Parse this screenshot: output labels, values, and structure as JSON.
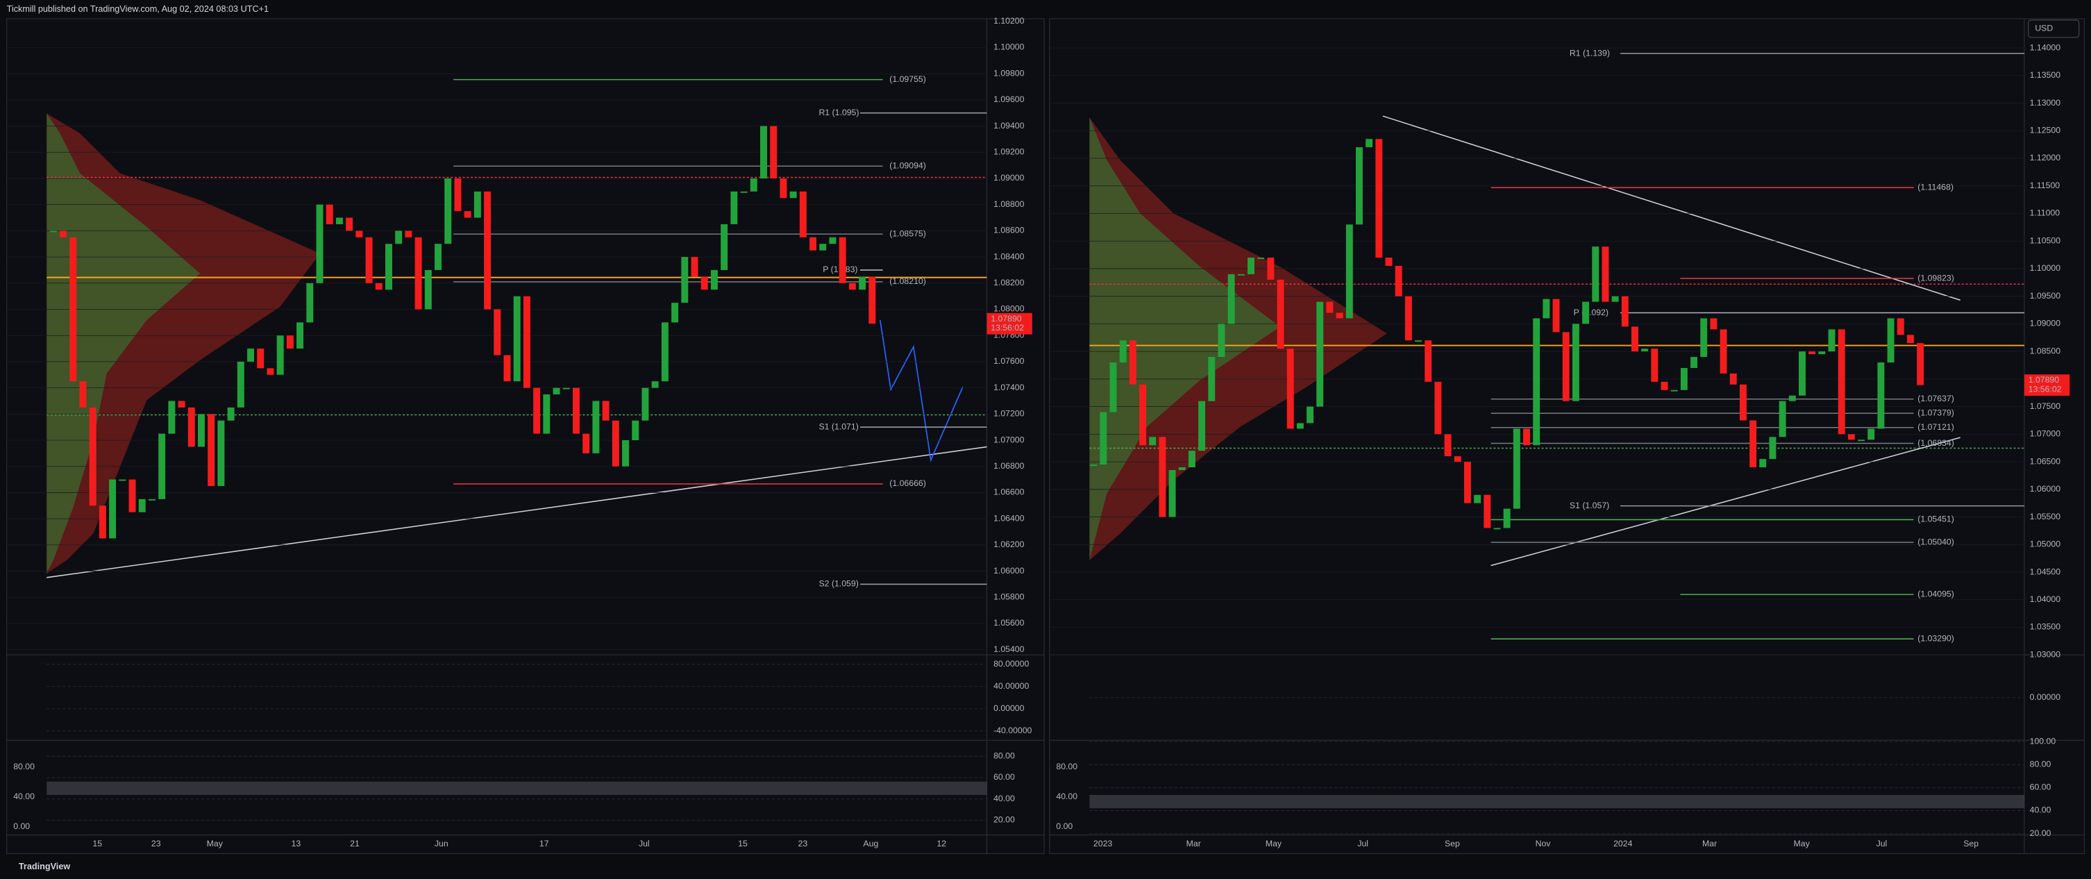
{
  "header": {
    "title": "Tickmill published on TradingView.com, Aug 02, 2024 08:03 UTC+1"
  },
  "footer": {
    "brand": "TradingView"
  },
  "currency": "USD",
  "up_color": "#23a33b",
  "down_color": "#f41d1d",
  "panels": [
    {
      "ylim": [
        1.0536,
        1.1022
      ],
      "yticks": [
        {
          "value": 1.102,
          "label": "1.10200"
        },
        {
          "value": 1.1,
          "label": "1.10000"
        },
        {
          "value": 1.098,
          "label": "1.09800"
        },
        {
          "value": 1.096,
          "label": "1.09600"
        },
        {
          "value": 1.094,
          "label": "1.09400"
        },
        {
          "value": 1.092,
          "label": "1.09200"
        },
        {
          "value": 1.09,
          "label": "1.09000"
        },
        {
          "value": 1.088,
          "label": "1.08800"
        },
        {
          "value": 1.086,
          "label": "1.08600"
        },
        {
          "value": 1.084,
          "label": "1.08400"
        },
        {
          "value": 1.082,
          "label": "1.08200"
        },
        {
          "value": 1.08,
          "label": "1.08000"
        },
        {
          "value": 1.078,
          "label": "1.07800"
        },
        {
          "value": 1.076,
          "label": "1.07600"
        },
        {
          "value": 1.074,
          "label": "1.07400"
        },
        {
          "value": 1.072,
          "label": "1.07200"
        },
        {
          "value": 1.07,
          "label": "1.07000"
        },
        {
          "value": 1.068,
          "label": "1.06800"
        },
        {
          "value": 1.066,
          "label": "1.06600"
        },
        {
          "value": 1.064,
          "label": "1.06400"
        },
        {
          "value": 1.062,
          "label": "1.06200"
        },
        {
          "value": 1.06,
          "label": "1.06000"
        },
        {
          "value": 1.058,
          "label": "1.05800"
        },
        {
          "value": 1.056,
          "label": "1.05600"
        },
        {
          "value": 1.054,
          "label": "1.05400"
        }
      ],
      "closes": [
        1.086,
        1.0855,
        1.0745,
        1.0725,
        1.065,
        1.0625,
        1.067,
        1.067,
        1.0645,
        1.0655,
        1.0655,
        1.0705,
        1.073,
        1.0725,
        1.0695,
        1.072,
        1.0665,
        1.0715,
        1.0725,
        1.076,
        1.077,
        1.0755,
        1.075,
        1.078,
        1.077,
        1.079,
        1.082,
        1.088,
        1.0865,
        1.087,
        1.086,
        1.0855,
        1.082,
        1.0815,
        1.085,
        1.086,
        1.0855,
        1.08,
        1.083,
        1.085,
        1.09,
        1.0875,
        1.087,
        1.089,
        1.08,
        1.0765,
        1.0745,
        1.081,
        1.074,
        1.0705,
        1.0735,
        1.074,
        1.074,
        1.0705,
        1.069,
        1.073,
        1.0715,
        1.068,
        1.07,
        1.0715,
        1.074,
        1.0745,
        1.079,
        1.0805,
        1.084,
        1.0825,
        1.0815,
        1.083,
        1.0865,
        1.089,
        1.089,
        1.09,
        1.094,
        1.09,
        1.0885,
        1.089,
        1.0855,
        1.0845,
        1.085,
        1.0855,
        1.082,
        1.0815,
        1.0825,
        1.0789
      ],
      "levels": [
        {
          "label": "(1.09755)",
          "price": 1.09755,
          "color": "#4caf50"
        },
        {
          "label": "R1 (1.095)",
          "price": 1.095,
          "color": "#9598a1"
        },
        {
          "label": "(1.09094)",
          "price": 1.09094,
          "color": "#787b86"
        },
        {
          "label": "(1.08575)",
          "price": 1.08575,
          "color": "#787b86"
        },
        {
          "label": "(1.08210)",
          "price": 1.0821,
          "color": "#787b86"
        },
        {
          "label": "P (1.083)",
          "price": 1.083,
          "color": "#b2b5be"
        },
        {
          "label": "S1 (1.071)",
          "price": 1.071,
          "color": "#9598a1"
        },
        {
          "label": "(1.06666)",
          "price": 1.06666,
          "color": "#f23645"
        },
        {
          "label": "S2 (1.059)",
          "price": 1.059,
          "color": "#9598a1"
        }
      ],
      "price_tag": {
        "value": {
          "value": 1.0789,
          "label": "1.07890"
        },
        "countdown": "13:56:02"
      },
      "dates": [
        "15",
        "23",
        "May",
        "13",
        "21",
        "Jun",
        "17",
        "Jul",
        "15",
        "23",
        "Aug",
        "12"
      ],
      "osc1": {
        "ylim": [
          -56.8,
          96.8
        ],
        "yticks": [
          {
            "value": 80,
            "label": "80.00000"
          },
          {
            "value": 40,
            "label": "40.00000"
          },
          {
            "value": 0,
            "label": "0.00000"
          },
          {
            "value": -40,
            "label": "-40.00000"
          }
        ]
      },
      "osc2": {
        "ylim": [
          -10.7,
          115.6
        ],
        "yticks": [
          {
            "value": 80,
            "label": "80.00"
          },
          {
            "value": 40,
            "label": "40.00"
          },
          {
            "value": 0,
            "label": "0.00"
          }
        ],
        "y2lim": [
          6.25,
          95
        ],
        "y2ticks": [
          {
            "value": 80,
            "label": "80.00"
          },
          {
            "value": 60,
            "label": "60.00"
          },
          {
            "value": 40,
            "label": "40.00"
          },
          {
            "value": 20,
            "label": "20.00"
          }
        ]
      }
    },
    {
      "ylim": [
        1.03,
        1.1453
      ],
      "yticks": [
        {
          "value": 1.14,
          "label": "1.14000"
        },
        {
          "value": 1.135,
          "label": "1.13500"
        },
        {
          "value": 1.13,
          "label": "1.13000"
        },
        {
          "value": 1.125,
          "label": "1.12500"
        },
        {
          "value": 1.12,
          "label": "1.12000"
        },
        {
          "value": 1.115,
          "label": "1.11500"
        },
        {
          "value": 1.11,
          "label": "1.11000"
        },
        {
          "value": 1.105,
          "label": "1.10500"
        },
        {
          "value": 1.1,
          "label": "1.10000"
        },
        {
          "value": 1.095,
          "label": "1.09500"
        },
        {
          "value": 1.09,
          "label": "1.09000"
        },
        {
          "value": 1.085,
          "label": "1.08500"
        },
        {
          "value": 1.08,
          "label": "1.08000"
        },
        {
          "value": 1.075,
          "label": "1.07500"
        },
        {
          "value": 1.07,
          "label": "1.07000"
        },
        {
          "value": 1.065,
          "label": "1.06500"
        },
        {
          "value": 1.06,
          "label": "1.06000"
        },
        {
          "value": 1.055,
          "label": "1.05500"
        },
        {
          "value": 1.05,
          "label": "1.05000"
        },
        {
          "value": 1.045,
          "label": "1.04500"
        },
        {
          "value": 1.04,
          "label": "1.04000"
        },
        {
          "value": 1.035,
          "label": "1.03500"
        },
        {
          "value": 1.03,
          "label": "1.03000"
        }
      ],
      "closes": [
        1.0645,
        1.074,
        1.083,
        1.087,
        1.079,
        1.068,
        1.0695,
        1.055,
        1.0635,
        1.064,
        1.067,
        1.076,
        1.084,
        1.09,
        1.099,
        1.099,
        1.102,
        1.102,
        1.098,
        1.0855,
        1.071,
        1.072,
        1.075,
        1.094,
        1.092,
        1.091,
        1.108,
        1.122,
        1.1235,
        1.102,
        1.1005,
        1.095,
        1.087,
        1.087,
        1.0795,
        1.07,
        1.066,
        1.065,
        1.0575,
        1.059,
        1.053,
        1.053,
        1.0565,
        1.071,
        1.068,
        1.091,
        1.0945,
        1.0885,
        1.076,
        1.09,
        1.094,
        1.104,
        1.094,
        1.095,
        1.0895,
        1.085,
        1.0855,
        1.0795,
        1.078,
        1.078,
        1.082,
        1.084,
        1.091,
        1.089,
        1.081,
        1.079,
        1.0725,
        1.064,
        1.0655,
        1.0695,
        1.076,
        1.077,
        1.085,
        1.0845,
        1.085,
        1.089,
        1.07,
        1.069,
        1.069,
        1.071,
        1.083,
        1.091,
        1.088,
        1.0865,
        1.0789
      ],
      "levels": [
        {
          "label": "R1 (1.139)",
          "price": 1.139,
          "color": "#9598a1"
        },
        {
          "label": "(1.11468)",
          "price": 1.11468,
          "color": "#f23645"
        },
        {
          "label": "(1.09823)",
          "price": 1.09823,
          "color": "#f23645"
        },
        {
          "label": "P (1.092)",
          "price": 1.092,
          "color": "#b2b5be"
        },
        {
          "label": "(1.07637)",
          "price": 1.07637,
          "color": "#787b86"
        },
        {
          "label": "(1.07379)",
          "price": 1.07379,
          "color": "#787b86"
        },
        {
          "label": "(1.07121)",
          "price": 1.07121,
          "color": "#787b86"
        },
        {
          "label": "(1.06834)",
          "price": 1.06834,
          "color": "#787b86"
        },
        {
          "label": "S1 (1.057)",
          "price": 1.057,
          "color": "#9598a1"
        },
        {
          "label": "(1.05451)",
          "price": 1.05451,
          "color": "#4caf50"
        },
        {
          "label": "(1.05040)",
          "price": 1.0504,
          "color": "#787b86"
        },
        {
          "label": "(1.04095)",
          "price": 1.04095,
          "color": "#4caf50"
        },
        {
          "label": "(1.03290)",
          "price": 1.0329,
          "color": "#4caf50"
        }
      ],
      "price_tag": {
        "value": {
          "value": 1.0789,
          "label": "1.07890"
        },
        "countdown": "13:56:02"
      },
      "dates": [
        "2023",
        "Mar",
        "May",
        "Jul",
        "Sep",
        "Nov",
        "2024",
        "Mar",
        "May",
        "Jul",
        "Sep"
      ],
      "osc1": {
        "ylim": [
          -70,
          70
        ],
        "yticks": [
          {
            "value": 0,
            "label": "0.00000"
          }
        ]
      },
      "osc2": {
        "ylim": [
          -10.7,
          115.6
        ],
        "yticks": [
          {
            "value": 80,
            "label": "80.00"
          },
          {
            "value": 40,
            "label": "40.00"
          },
          {
            "value": 0,
            "label": "0.00"
          }
        ],
        "y2lim": [
          18.8,
          101.2
        ],
        "y2ticks": [
          {
            "value": 100,
            "label": "100.00"
          },
          {
            "value": 80,
            "label": "80.00"
          },
          {
            "value": 60,
            "label": "60.00"
          },
          {
            "value": 40,
            "label": "40.00"
          },
          {
            "value": 20,
            "label": "20.00"
          }
        ]
      }
    }
  ]
}
